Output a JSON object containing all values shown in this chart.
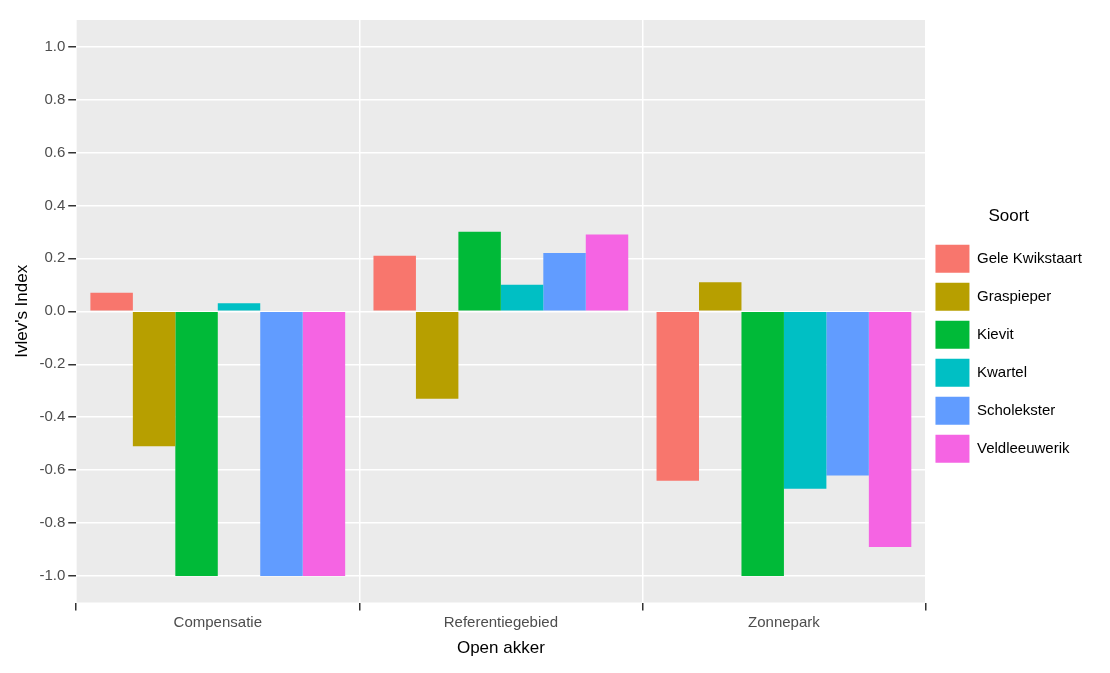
{
  "chart_data": {
    "type": "bar",
    "xlabel": "Open akker",
    "ylabel": "Ivlev's Index",
    "legend_title": "Soort",
    "categories": [
      "Compensatie",
      "Referentiegebied",
      "Zonnepark"
    ],
    "series": [
      {
        "name": "Gele Kwikstaart",
        "color": "#f8766d",
        "values": [
          0.07,
          0.21,
          -0.64
        ]
      },
      {
        "name": "Graspieper",
        "color": "#b79f00",
        "values": [
          -0.51,
          -0.33,
          0.11
        ]
      },
      {
        "name": "Kievit",
        "color": "#00ba38",
        "values": [
          -1.0,
          0.3,
          -1.0
        ]
      },
      {
        "name": "Kwartel",
        "color": "#00bfc4",
        "values": [
          0.03,
          0.1,
          -0.67
        ]
      },
      {
        "name": "Scholekster",
        "color": "#619cff",
        "values": [
          -1.0,
          0.22,
          -0.62
        ]
      },
      {
        "name": "Veldleeuwerik",
        "color": "#f564e3",
        "values": [
          -1.0,
          0.29,
          -0.89
        ]
      }
    ],
    "ylim": [
      -1.1,
      1.1
    ],
    "yticks": [
      {
        "value": -1,
        "label": "-1.0"
      },
      {
        "value": -0.8,
        "label": "-0.8"
      },
      {
        "value": -0.6,
        "label": "-0.6"
      },
      {
        "value": -0.4,
        "label": "-0.4"
      },
      {
        "value": -0.2,
        "label": "-0.2"
      },
      {
        "value": 0,
        "label": "0.0"
      },
      {
        "value": 0.2,
        "label": "0.2"
      },
      {
        "value": 0.4,
        "label": "0.4"
      },
      {
        "value": 0.6,
        "label": "0.6"
      },
      {
        "value": 0.8,
        "label": "0.8"
      },
      {
        "value": 1,
        "label": "1.0"
      }
    ],
    "grid": true,
    "legend": "right"
  }
}
